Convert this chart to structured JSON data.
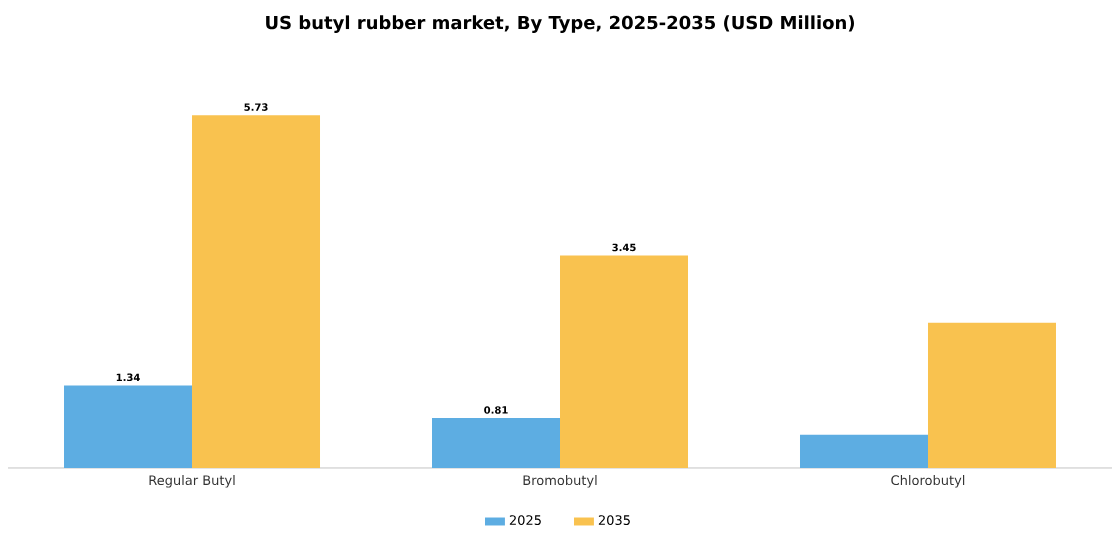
{
  "chart_data": {
    "type": "bar",
    "title": "US butyl rubber market, By Type, 2025-2035 (USD Million)",
    "categories": [
      "Regular Butyl",
      "Bromobutyl",
      "Chlorobutyl"
    ],
    "series": [
      {
        "name": "2025",
        "color": "#5dade2",
        "values": [
          1.34,
          0.81,
          0.54
        ],
        "value_labels": [
          "1.34",
          "0.81",
          null
        ]
      },
      {
        "name": "2035",
        "color": "#f9c24f",
        "values": [
          5.73,
          3.45,
          2.36
        ],
        "value_labels": [
          "5.73",
          "3.45",
          null
        ]
      }
    ],
    "legend": "bottom"
  }
}
